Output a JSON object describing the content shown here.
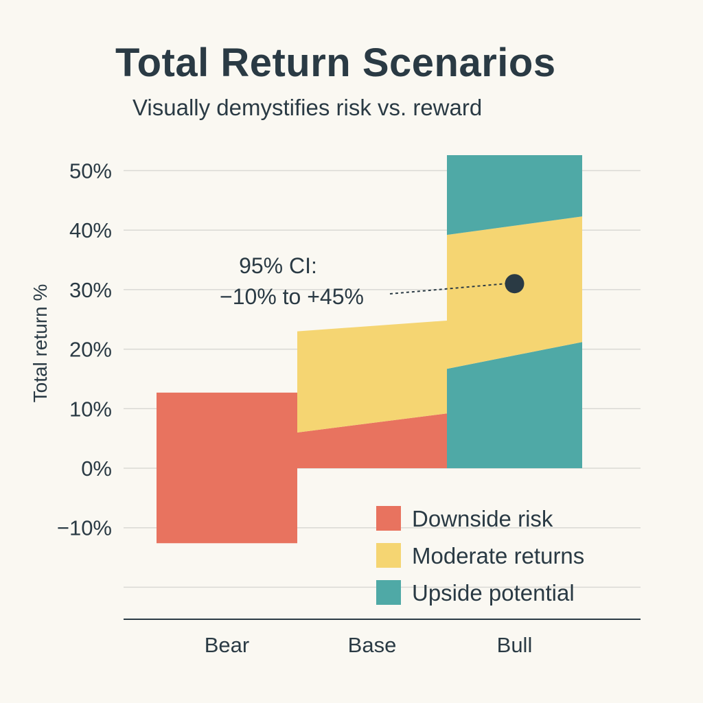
{
  "chart_data": {
    "type": "bar",
    "title": "Total Return Scenarios",
    "subtitle": "Visually demystifies risk vs. reward",
    "xlabel": "",
    "ylabel": "Total return %",
    "ylim": [
      -20,
      55
    ],
    "grid": true,
    "yticks": [
      50,
      40,
      30,
      20,
      10,
      0,
      -10
    ],
    "ytick_labels": [
      "50%",
      "40%",
      "30%",
      "20%",
      "10%",
      "0%",
      "−10%"
    ],
    "categories": [
      "Bear",
      "Base",
      "Bull"
    ],
    "segments": [
      {
        "category": "Bear",
        "series": "Downside risk",
        "low_start": -12.6,
        "low_end": -12.6,
        "high_start": 12.7,
        "high_end": 12.7
      },
      {
        "category": "Base",
        "series": "Downside risk",
        "low_start": 0,
        "low_end": 0,
        "high_start": 6,
        "high_end": 9.2
      },
      {
        "category": "Base",
        "series": "Moderate returns",
        "low_start": 6,
        "low_end": 9.2,
        "high_start": 23,
        "high_end": 24.8
      },
      {
        "category": "Bull",
        "series": "Upside potential",
        "low_start": 0,
        "low_end": 0,
        "high_start": 16.7,
        "high_end": 21.2
      },
      {
        "category": "Bull",
        "series": "Moderate returns",
        "low_start": 16.7,
        "low_end": 21.2,
        "high_start": 39.2,
        "high_end": 42.3
      },
      {
        "category": "Bull",
        "series": "Upside potential",
        "low_start": 39.2,
        "low_end": 42.3,
        "high_start": 52.6,
        "high_end": 52.6
      }
    ],
    "legend": {
      "placement": "bottom-right",
      "entries": [
        {
          "label": "Downside risk",
          "color": "#E8735F"
        },
        {
          "label": "Moderate returns",
          "color": "#F5D572"
        },
        {
          "label": "Upside potential",
          "color": "#4FA9A6"
        }
      ]
    },
    "annotation": {
      "line1": "95% CI:",
      "line2": "−10% to +45%",
      "point_category": "Bull",
      "point_value": 31
    }
  }
}
